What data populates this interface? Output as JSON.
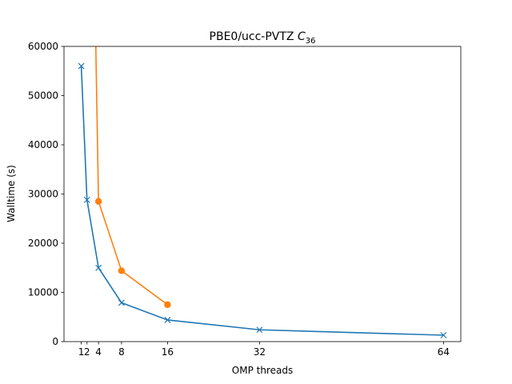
{
  "chart_data": {
    "type": "line",
    "title_main": "PBE0/ucc-PVTZ ",
    "title_symbol": "C",
    "title_subscript": "36",
    "xlabel": "OMP threads",
    "ylabel": "Walltime (s)",
    "xlim": [
      -2,
      67
    ],
    "ylim": [
      0,
      60000
    ],
    "xticks": [
      1,
      2,
      4,
      8,
      16,
      32,
      64
    ],
    "xtick_labels": [
      "1",
      "2",
      "4",
      "8",
      "16",
      "32",
      "64"
    ],
    "yticks": [
      0,
      10000,
      20000,
      30000,
      40000,
      50000,
      60000
    ],
    "ytick_labels": [
      "0",
      "10000",
      "20000",
      "30000",
      "40000",
      "50000",
      "60000"
    ],
    "grid": false,
    "series": [
      {
        "color": "#1f77b4",
        "marker": "x",
        "x": [
          1,
          2,
          4,
          8,
          16,
          32,
          64
        ],
        "y": [
          56000,
          28800,
          15000,
          7900,
          4400,
          2400,
          1300
        ]
      },
      {
        "color": "#ff7f0e",
        "marker": "circle",
        "x": [
          3.5,
          4,
          8,
          16
        ],
        "y": [
          62000,
          28500,
          14400,
          7500
        ]
      }
    ]
  }
}
